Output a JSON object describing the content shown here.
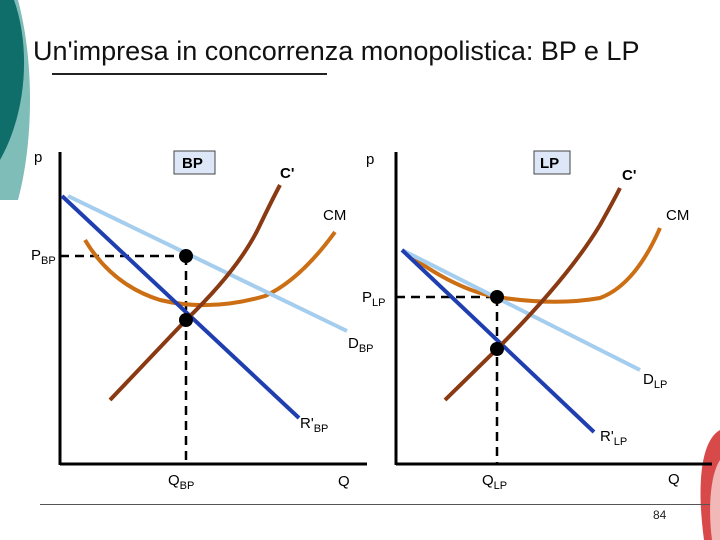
{
  "title": "Un'impresa in concorrenza monopolistica: BP e LP",
  "page_number": "84",
  "colors": {
    "demand": "#a5cdee",
    "marginal_revenue": "#1f3fb0",
    "marginal_cost": "#8a3a12",
    "average_cost": "#cc6e14",
    "axes": "#000000",
    "label_box": "#dde7f7",
    "deco_teal": "#0f6e6a",
    "deco_teal_light": "#7fbdb8",
    "deco_red": "#d84a4a"
  },
  "left": {
    "box_label": "BP",
    "y_axis": "p",
    "x_axis": "Q",
    "mc_label": "C'",
    "ac_label": "CM",
    "price": {
      "main": "P",
      "sub": "BP"
    },
    "demand": {
      "main": "D",
      "sub": "BP"
    },
    "mr": {
      "main": "R'",
      "sub": "BP"
    },
    "quantity": {
      "main": "Q",
      "sub": "BP"
    }
  },
  "right": {
    "box_label": "LP",
    "y_axis": "p",
    "x_axis": "Q",
    "mc_label": "C'",
    "ac_label": "CM",
    "price": {
      "main": "P",
      "sub": "LP"
    },
    "demand": {
      "main": "D",
      "sub": "LP"
    },
    "mr": {
      "main": "R'",
      "sub": "LP"
    },
    "quantity": {
      "main": "Q",
      "sub": "LP"
    }
  }
}
